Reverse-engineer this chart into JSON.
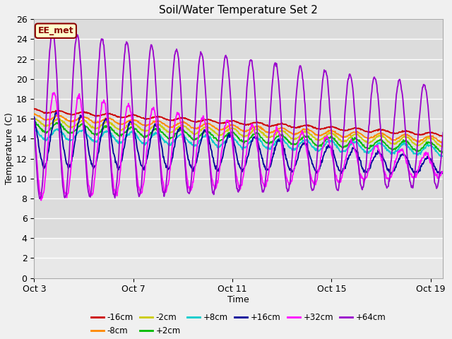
{
  "title": "Soil/Water Temperature Set 2",
  "xlabel": "Time",
  "ylabel": "Temperature (C)",
  "ylim": [
    0,
    26
  ],
  "yticks": [
    0,
    2,
    4,
    6,
    8,
    10,
    12,
    14,
    16,
    18,
    20,
    22,
    24,
    26
  ],
  "x_tick_days": [
    0,
    4,
    8,
    12,
    16
  ],
  "x_tick_labels": [
    "Oct 3",
    "Oct 7",
    "Oct 11",
    "Oct 15",
    "Oct 19"
  ],
  "annotation": "EE_met",
  "series_colors": {
    "-16cm": "#cc0000",
    "-8cm": "#ff8800",
    "-2cm": "#cccc00",
    "+2cm": "#00bb00",
    "+8cm": "#00cccc",
    "+16cm": "#000099",
    "+32cm": "#ff00ff",
    "+64cm": "#9900cc"
  },
  "legend_order": [
    "-16cm",
    "-8cm",
    "-2cm",
    "+2cm",
    "+8cm",
    "+16cm",
    "+32cm",
    "+64cm"
  ],
  "legend_row1": [
    "-16cm",
    "-8cm",
    "-2cm",
    "+2cm",
    "+8cm",
    "+16cm"
  ],
  "legend_row2": [
    "+32cm",
    "+64cm"
  ],
  "plot_bg_upper": "#dcdcdc",
  "plot_bg_lower": "#e8e8e8",
  "grid_color": "#ffffff",
  "fig_bg": "#f0f0f0",
  "figsize": [
    6.4,
    4.8
  ],
  "dpi": 100
}
